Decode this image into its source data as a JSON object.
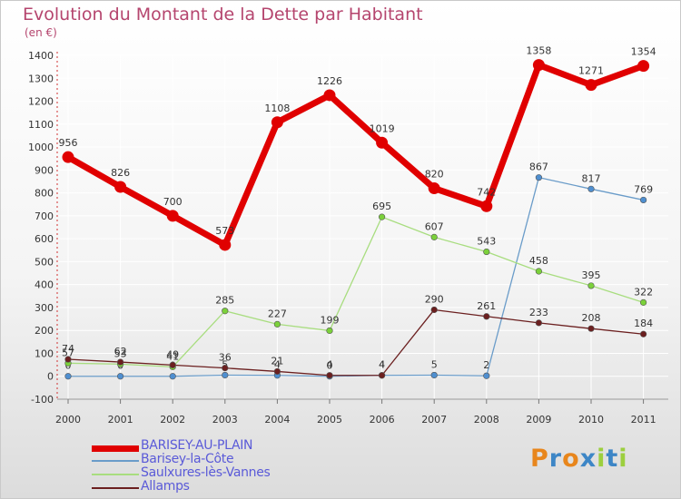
{
  "title": "Evolution du Montant de la Dette par Habitant",
  "subtitle": "(en €)",
  "colors": {
    "background_top": "#ffffff",
    "background_bottom": "#dcdcdc",
    "title": "#b5456e",
    "legend_text": "#5a5ad8",
    "grid": "#ffffff"
  },
  "chart_data": {
    "type": "line",
    "categories": [
      "2000",
      "2001",
      "2002",
      "2003",
      "2004",
      "2005",
      "2006",
      "2007",
      "2008",
      "2009",
      "2010",
      "2011"
    ],
    "ylim": [
      -100,
      1400
    ],
    "yticks": [
      -100,
      0,
      100,
      200,
      300,
      400,
      500,
      600,
      700,
      800,
      900,
      1000,
      1100,
      1200,
      1300,
      1400
    ],
    "grid": true,
    "legend_position": "bottom-left",
    "series": [
      {
        "name": "BARISEY-AU-PLAIN",
        "color": "#e00000",
        "marker": "#e00000",
        "width": 7,
        "radius": 6.5,
        "values": [
          956,
          826,
          700,
          573,
          1108,
          1226,
          1019,
          820,
          742,
          1358,
          1271,
          1354
        ],
        "labels": [
          "956",
          "826",
          "700",
          "573",
          "1108",
          "1226",
          "1019",
          "820",
          "742",
          "1358",
          "1271",
          "1354"
        ]
      },
      {
        "name": "Barisey-la-Côte",
        "color": "#6a9cc9",
        "marker": "#4f8fd0",
        "width": 1.3,
        "radius": 3.3,
        "values": [
          0,
          0,
          0,
          5,
          4,
          0,
          4,
          5,
          2,
          867,
          817,
          769
        ],
        "labels": [
          "0",
          "0",
          "0",
          "5",
          "4",
          "0",
          "4",
          "5",
          "2",
          "867",
          "817",
          "769"
        ]
      },
      {
        "name": "Saulxures-lès-Vannes",
        "color": "#a8dd7f",
        "marker": "#7bd13a",
        "width": 1.3,
        "radius": 3.3,
        "values": [
          57,
          53,
          41,
          285,
          227,
          199,
          695,
          607,
          543,
          458,
          395,
          322
        ],
        "labels": [
          "57",
          "53",
          "41",
          "285",
          "227",
          "199",
          "695",
          "607",
          "543",
          "458",
          "395",
          "322"
        ]
      },
      {
        "name": "Allamps",
        "color": "#6b1f1f",
        "marker": "#6b1f1f",
        "width": 1.3,
        "radius": 3.3,
        "values": [
          74,
          62,
          49,
          36,
          21,
          4,
          4,
          290,
          261,
          233,
          208,
          184
        ],
        "labels": [
          "74",
          "62",
          "49",
          "36",
          "21",
          "4",
          "4",
          "290",
          "261",
          "233",
          "208",
          "184"
        ]
      }
    ]
  },
  "legend": {
    "items": [
      {
        "label": "BARISEY-AU-PLAIN",
        "color": "#e00000",
        "width": 7
      },
      {
        "label": "Barisey-la-Côte",
        "color": "#6a9cc9",
        "width": 2
      },
      {
        "label": "Saulxures-lès-Vannes",
        "color": "#a8dd7f",
        "width": 2
      },
      {
        "label": "Allamps",
        "color": "#6b1f1f",
        "width": 2
      }
    ]
  },
  "logo": {
    "text": "Proxiti",
    "letter_colors": [
      "#e8861c",
      "#3d86c6",
      "#e8861c",
      "#3d86c6",
      "#9ccf3e",
      "#3d86c6",
      "#9ccf3e"
    ]
  }
}
